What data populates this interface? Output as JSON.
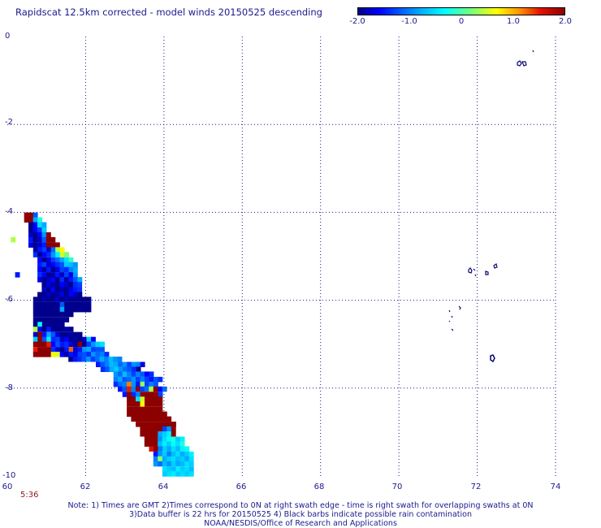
{
  "chart_data": {
    "type": "heatmap",
    "title": "Rapidscat 12.5km corrected - model winds 20150525 descending",
    "colorbar": {
      "min": -2.0,
      "max": 2.0,
      "ticks": [
        "-2.0",
        "-1.0",
        "0",
        "1.0",
        "2.0"
      ]
    },
    "x_ticks": [
      "60",
      "62",
      "64",
      "66",
      "68",
      "70",
      "72",
      "74"
    ],
    "y_ticks": [
      "0",
      "-2",
      "-4",
      "-6",
      "-8",
      "-10"
    ],
    "xlim": [
      60,
      74
    ],
    "ylim": [
      -10,
      0
    ],
    "cell_size_deg": 0.1136,
    "grid": true,
    "swath_rows": [
      {
        "lat": -4.06,
        "lon_start": 60.43,
        "values": [
          2,
          2,
          -1.2
        ]
      },
      {
        "lat": -4.17,
        "lon_start": 60.43,
        "values": [
          2,
          2,
          -0.8,
          -0.2
        ]
      },
      {
        "lat": -4.28,
        "lon_start": 60.54,
        "values": [
          -2,
          -1.6,
          -0.5,
          -0.8
        ]
      },
      {
        "lat": -4.4,
        "lon_start": 60.54,
        "values": [
          -2,
          -1.6,
          -1.3,
          -0.6
        ]
      },
      {
        "lat": -4.51,
        "lon_start": 60.54,
        "values": [
          -1.8,
          -2,
          -1.6,
          -0.9,
          2
        ]
      },
      {
        "lat": -4.62,
        "lon_start": 60.54,
        "values": [
          -1.5,
          -2,
          -1.8,
          -1.2,
          2,
          2
        ]
      },
      {
        "lat": -4.74,
        "lon_start": 60.54,
        "values": [
          -1.7,
          -2,
          -1.8,
          -1.5,
          2,
          2,
          2
        ]
      },
      {
        "lat": -4.85,
        "lon_start": 60.66,
        "values": [
          -1.9,
          -1.5,
          -1.3,
          -1.8,
          -1.1,
          0.4,
          0.7
        ]
      },
      {
        "lat": -4.96,
        "lon_start": 60.66,
        "values": [
          -1.4,
          -2,
          -1.6,
          -1.4,
          -0.9,
          -0.4,
          0.5,
          0.2
        ]
      },
      {
        "lat": -5.08,
        "lon_start": 60.77,
        "values": [
          -1.6,
          -2,
          -1.7,
          -1.3,
          -1.1,
          -0.8,
          -0.5,
          -0.1
        ]
      },
      {
        "lat": -5.19,
        "lon_start": 60.77,
        "values": [
          -1.5,
          -1.3,
          -1.8,
          -1.6,
          -1.4,
          -1.2,
          -0.6,
          -0.7,
          -0.9
        ]
      },
      {
        "lat": -5.3,
        "lon_start": 60.77,
        "values": [
          -1.6,
          -1.9,
          -1.5,
          -2,
          -1.7,
          -1.3,
          -1.4,
          -1.0,
          -0.8
        ]
      },
      {
        "lat": -5.42,
        "lon_start": 60.77,
        "values": [
          -1.4,
          -1.6,
          -2,
          -1.9,
          -1.5,
          -1.8,
          -1.3,
          -1.7,
          -0.9
        ]
      },
      {
        "lat": -5.53,
        "lon_start": 60.77,
        "values": [
          -1.7,
          -2,
          -1.8,
          -1.6,
          -2,
          -1.4,
          -1.9,
          -1.5,
          -1.2,
          -0.8
        ]
      },
      {
        "lat": -5.64,
        "lon_start": 60.88,
        "values": [
          -2,
          -1.7,
          -1.9,
          -2,
          -1.6,
          -1.8,
          -2,
          -1.4,
          -1.3
        ]
      },
      {
        "lat": -5.76,
        "lon_start": 60.88,
        "values": [
          -1.8,
          -2,
          -1.6,
          -2,
          -1.9,
          -2,
          -1.7,
          -1.5,
          -1.4
        ]
      },
      {
        "lat": -5.87,
        "lon_start": 60.77,
        "values": [
          -2,
          -2,
          -1.8,
          -2,
          -1.9,
          -1.7,
          -2,
          -1.6,
          -1.8,
          -2
        ]
      },
      {
        "lat": -5.98,
        "lon_start": 60.66,
        "values": [
          -2,
          -2,
          -1.9,
          -2,
          -2,
          -1.8,
          -2,
          -1.9,
          -2,
          -2,
          -2,
          -2,
          -2
        ]
      },
      {
        "lat": -6.1,
        "lon_start": 60.66,
        "values": [
          -2,
          -2,
          -2,
          -2,
          -2,
          -2,
          -1.2,
          -2,
          -2,
          -2,
          -2,
          -2,
          -2
        ]
      },
      {
        "lat": -6.21,
        "lon_start": 60.66,
        "values": [
          -2,
          -2,
          -2,
          -2,
          -2,
          -2,
          -0.8,
          -2,
          -2,
          -2,
          -2,
          -2,
          -2
        ]
      },
      {
        "lat": -6.32,
        "lon_start": 60.66,
        "values": [
          -2,
          -2,
          -2,
          -2,
          -2,
          -2,
          -2,
          -2,
          -2
        ]
      },
      {
        "lat": -6.44,
        "lon_start": 60.66,
        "values": [
          -2,
          -2,
          -2,
          -2,
          -2,
          -2,
          -2,
          -2
        ]
      },
      {
        "lat": -6.55,
        "lon_start": 60.66,
        "values": [
          -2,
          -0.3,
          -2,
          -2,
          -2,
          -2,
          -2
        ]
      },
      {
        "lat": -6.66,
        "lon_start": 60.66,
        "values": [
          0.4,
          -1.7,
          -2,
          -1.5,
          -2,
          -2,
          -2,
          -1.9,
          -2
        ]
      },
      {
        "lat": -6.78,
        "lon_start": 60.66,
        "values": [
          -1.8,
          2,
          -1.5,
          -0.8,
          -1.2,
          -1.7,
          -2,
          -2,
          -1.9,
          -2,
          -2
        ]
      },
      {
        "lat": -6.89,
        "lon_start": 60.66,
        "values": [
          -0.6,
          2,
          -1.2,
          -0.4,
          -1.4,
          -1.3,
          -1.8,
          -1.6,
          -2,
          -1.9,
          -2,
          -1.8,
          -0.6,
          -1.6
        ]
      },
      {
        "lat": -7.0,
        "lon_start": 60.66,
        "values": [
          2,
          2,
          2,
          1.5,
          -1.6,
          -1.2,
          -1.5,
          -1.4,
          -1.7,
          -2,
          2,
          -2,
          -1.3,
          -0.9,
          -0.6,
          -0.5
        ]
      },
      {
        "lat": -7.12,
        "lon_start": 60.66,
        "values": [
          1.5,
          2,
          2,
          2,
          -1.4,
          -1.7,
          -2,
          -1.5,
          1.3,
          -1.7,
          -1.5,
          -0.9,
          -0.8,
          -1.3,
          -1.2,
          -1.2
        ]
      },
      {
        "lat": -7.23,
        "lon_start": 60.66,
        "values": [
          2,
          2,
          2,
          2,
          0.6,
          0.6,
          -1.6,
          -1.9,
          -1.5,
          -1.7,
          -1.3,
          -1.2,
          -1.4,
          -0.9,
          -1.1,
          -1.0,
          -1.4
        ]
      },
      {
        "lat": -7.34,
        "lon_start": 61.56,
        "values": [
          -2,
          -1.5,
          -1.4,
          -1.2,
          -0.9,
          -1.3,
          -1.1,
          -0.8,
          -1.0,
          -0.7,
          -0.9,
          -1.0
        ]
      },
      {
        "lat": -7.46,
        "lon_start": 62.26,
        "values": [
          -1.5,
          -1.2,
          -1.0,
          -0.7,
          -0.8,
          -1.1,
          -0.9,
          -1.3,
          -0.9,
          -1.0,
          -1.7
        ]
      },
      {
        "lat": -7.57,
        "lon_start": 62.38,
        "values": [
          -1.4,
          -1.2,
          -0.8,
          -0.6,
          -0.9,
          -1.1,
          -1.2,
          -1.4,
          -2
        ]
      },
      {
        "lat": -7.68,
        "lon_start": 62.71,
        "values": [
          -0.9,
          -1.1,
          -0.7,
          -1.0,
          -1.3,
          -1.0,
          -1.2,
          -1.6,
          -1.4
        ]
      },
      {
        "lat": -7.8,
        "lon_start": 62.71,
        "values": [
          -1.0,
          -0.8,
          -1.2,
          -1.1,
          -0.9,
          -1.3,
          -1.0,
          -1.3,
          -1.5,
          -1.2,
          -1.4
        ]
      },
      {
        "lat": -7.91,
        "lon_start": 62.71,
        "values": [
          -1.4,
          -1.1,
          -1.0,
          1.2,
          -0.9,
          -1.5,
          0.3,
          -1.3,
          -1.0,
          -1.2
        ]
      },
      {
        "lat": -8.02,
        "lon_start": 62.82,
        "values": [
          -1.5,
          -1.2,
          1.5,
          -1.0,
          2,
          -1.3,
          -1.1,
          0.4,
          2,
          -1.6,
          -1.1
        ]
      },
      {
        "lat": -8.14,
        "lon_start": 62.94,
        "values": [
          -1.5,
          2,
          -1.4,
          -1.0,
          2,
          2,
          2,
          2,
          -1.3
        ]
      },
      {
        "lat": -8.25,
        "lon_start": 63.05,
        "values": [
          2,
          2,
          -0.5,
          0.5,
          2,
          2,
          2,
          2
        ]
      },
      {
        "lat": -8.36,
        "lon_start": 63.05,
        "values": [
          2,
          2,
          2,
          0.7,
          2,
          2,
          2,
          2
        ]
      },
      {
        "lat": -8.48,
        "lon_start": 63.05,
        "values": [
          2,
          2,
          2,
          2,
          2,
          2,
          2,
          2
        ]
      },
      {
        "lat": -8.59,
        "lon_start": 63.05,
        "values": [
          2,
          2,
          2,
          2,
          2,
          2,
          2,
          2,
          2
        ]
      },
      {
        "lat": -8.7,
        "lon_start": 63.16,
        "values": [
          2,
          2,
          2,
          2,
          2,
          2,
          2,
          2,
          2
        ]
      },
      {
        "lat": -8.82,
        "lon_start": 63.28,
        "values": [
          2,
          2,
          2,
          2,
          2,
          2,
          2,
          2,
          2
        ]
      },
      {
        "lat": -8.93,
        "lon_start": 63.39,
        "values": [
          2,
          2,
          2,
          2,
          2,
          -1.3,
          -0.9,
          2
        ]
      },
      {
        "lat": -9.04,
        "lon_start": 63.39,
        "values": [
          2,
          2,
          2,
          2,
          -0.8,
          -0.6,
          -0.4,
          2
        ]
      },
      {
        "lat": -9.16,
        "lon_start": 63.5,
        "values": [
          2,
          2,
          2,
          -0.9,
          -0.5,
          -0.3,
          -0.2,
          -0.6,
          -0.4
        ]
      },
      {
        "lat": -9.27,
        "lon_start": 63.5,
        "values": [
          2,
          2,
          2,
          -0.7,
          -0.4,
          -0.6,
          -0.3,
          -0.5,
          -0.2
        ]
      },
      {
        "lat": -9.38,
        "lon_start": 63.62,
        "values": [
          1.6,
          2,
          -1.0,
          -0.6,
          -0.8,
          -0.5,
          -0.7,
          -0.4,
          -0.3
        ]
      },
      {
        "lat": -9.5,
        "lon_start": 63.73,
        "values": [
          -1.5,
          -0.9,
          -0.6,
          -1.0,
          -0.7,
          -0.5,
          -0.8,
          -0.6,
          -0.4
        ]
      },
      {
        "lat": -9.61,
        "lon_start": 63.73,
        "values": [
          -1.0,
          0.3,
          -0.8,
          -0.6,
          -0.5,
          -0.7,
          -0.6,
          -0.8,
          -0.5
        ]
      },
      {
        "lat": -9.72,
        "lon_start": 63.73,
        "values": [
          -0.9,
          -1.1,
          -0.7,
          -0.9,
          -0.6,
          -0.8,
          -0.7,
          -0.5,
          -0.6
        ]
      },
      {
        "lat": -9.84,
        "lon_start": 63.96,
        "values": [
          -0.5,
          -0.6,
          -0.7,
          -0.4,
          -0.6,
          -0.5,
          -0.7
        ]
      },
      {
        "lat": -9.95,
        "lon_start": 63.96,
        "values": [
          -0.6,
          -0.5,
          -0.4,
          -0.6,
          -0.5,
          -0.6,
          -0.5
        ]
      }
    ],
    "isolated_cells": [
      {
        "lat": -4.62,
        "lon": 60.09,
        "value": 0.4
      },
      {
        "lat": -5.42,
        "lon": 60.2,
        "value": -1.5
      }
    ]
  },
  "timestamp": "5:36",
  "notes": [
    "Note: 1) Times are GMT 2)Times correspond to 0N at right swath edge - time is right swath for overlapping swaths at 0N",
    "3)Data buffer is 22 hrs for 20150525 4) Black barbs indicate possible rain contamination",
    "NOAA/NESDIS/Office of Research and Applications"
  ]
}
